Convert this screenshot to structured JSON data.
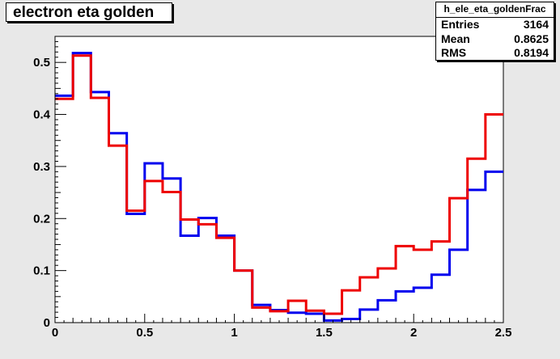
{
  "title": "electron eta golden",
  "stats": {
    "name": "h_ele_eta_goldenFrac",
    "rows": [
      {
        "label": "Entries",
        "value": "3164"
      },
      {
        "label": "Mean",
        "value": "0.8625"
      },
      {
        "label": "RMS",
        "value": "0.8194"
      }
    ]
  },
  "chart_data": {
    "type": "line",
    "style": "step-histogram",
    "xlim": [
      0,
      2.5
    ],
    "ylim": [
      0,
      0.55
    ],
    "xticks": [
      "0",
      "0.5",
      "1",
      "1.5",
      "2",
      "2.5"
    ],
    "yticks": [
      "0",
      "0.1",
      "0.2",
      "0.3",
      "0.4",
      "0.5"
    ],
    "bin_edges": [
      0,
      0.1,
      0.2,
      0.3,
      0.4,
      0.5,
      0.6,
      0.7,
      0.8,
      0.9,
      1.0,
      1.1,
      1.2,
      1.3,
      1.4,
      1.5,
      1.6,
      1.7,
      1.8,
      1.9,
      2.0,
      2.1,
      2.2,
      2.3,
      2.4,
      2.5
    ],
    "series": [
      {
        "color": "#0000ee",
        "values": [
          0.436,
          0.518,
          0.443,
          0.364,
          0.209,
          0.306,
          0.277,
          0.167,
          0.201,
          0.167,
          0.1,
          0.034,
          0.024,
          0.019,
          0.017,
          0.004,
          0.007,
          0.025,
          0.043,
          0.06,
          0.067,
          0.092,
          0.14,
          0.255,
          0.29
        ]
      },
      {
        "color": "#ee0000",
        "values": [
          0.43,
          0.513,
          0.432,
          0.34,
          0.215,
          0.272,
          0.251,
          0.198,
          0.189,
          0.163,
          0.1,
          0.029,
          0.022,
          0.042,
          0.023,
          0.017,
          0.062,
          0.087,
          0.104,
          0.147,
          0.14,
          0.156,
          0.239,
          0.315,
          0.4
        ]
      }
    ],
    "grid": false,
    "legend": "none"
  }
}
